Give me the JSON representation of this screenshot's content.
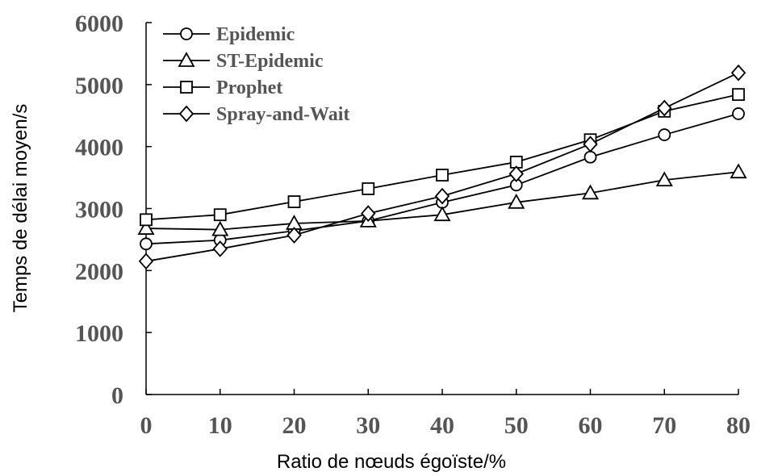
{
  "chart_data": {
    "type": "line",
    "title": "",
    "xlabel": "Ratio de nœuds égoïste/%",
    "ylabel": "Temps de délai moyen/s",
    "x": [
      0,
      10,
      20,
      30,
      40,
      50,
      60,
      70,
      80
    ],
    "xticks": [
      "0",
      "10",
      "20",
      "30",
      "40",
      "50",
      "60",
      "70",
      "80"
    ],
    "yticks": [
      "0",
      "1000",
      "2000",
      "3000",
      "4000",
      "5000",
      "6000"
    ],
    "xlim": [
      0,
      80
    ],
    "ylim": [
      0,
      6000
    ],
    "grid": false,
    "legend_position": "top-left",
    "series": [
      {
        "name": "Epidemic",
        "marker": "circle",
        "values": [
          2430,
          2490,
          2640,
          2800,
          3100,
          3380,
          3830,
          4190,
          4530
        ]
      },
      {
        "name": "ST-Epidemic",
        "marker": "triangle",
        "values": [
          2680,
          2660,
          2760,
          2800,
          2900,
          3100,
          3250,
          3460,
          3590
        ]
      },
      {
        "name": "Prophet",
        "marker": "square",
        "values": [
          2820,
          2900,
          3110,
          3320,
          3540,
          3750,
          4110,
          4570,
          4840
        ]
      },
      {
        "name": "Spray-and-Wait",
        "marker": "diamond",
        "values": [
          2150,
          2350,
          2570,
          2920,
          3200,
          3560,
          4040,
          4620,
          5190
        ]
      }
    ],
    "colors": {
      "line": "#000000",
      "axis": "#000000",
      "tick_text": "#555555"
    }
  }
}
